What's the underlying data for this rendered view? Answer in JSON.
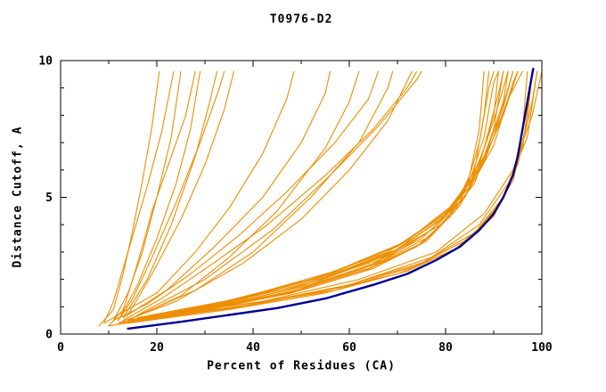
{
  "chart_data": {
    "type": "line",
    "title": "T0976-D2",
    "xlabel": "Percent of Residues (CA)",
    "ylabel": "Distance Cutoff, A",
    "xlim": [
      0,
      100
    ],
    "ylim": [
      0,
      10
    ],
    "xticks": [
      0,
      20,
      40,
      60,
      80,
      100
    ],
    "xminor": [
      10,
      30,
      50,
      70,
      90
    ],
    "yticks": [
      0,
      5,
      10
    ],
    "yminor": [
      1,
      2,
      3,
      4,
      6,
      7,
      8,
      9
    ],
    "grid": false,
    "legend": "none",
    "colors": {
      "model": "#ED8E00",
      "reference": "#000090",
      "axis": "#000000",
      "background": "#ffffff"
    },
    "models": [
      [
        [
          8,
          0.3
        ],
        [
          11,
          0.9
        ],
        [
          13,
          2.2
        ],
        [
          15,
          3.8
        ],
        [
          17,
          5.6
        ],
        [
          19,
          7.6
        ],
        [
          20.5,
          9.6
        ]
      ],
      [
        [
          11,
          0.5
        ],
        [
          14,
          1.5
        ],
        [
          17,
          3
        ],
        [
          20,
          5
        ],
        [
          23,
          7.2
        ],
        [
          25,
          9.6
        ]
      ],
      [
        [
          12,
          0.5
        ],
        [
          16,
          1.8
        ],
        [
          20,
          3.5
        ],
        [
          24,
          5.5
        ],
        [
          27,
          7.5
        ],
        [
          29,
          9.6
        ]
      ],
      [
        [
          13,
          0.6
        ],
        [
          18,
          2
        ],
        [
          23,
          4
        ],
        [
          28,
          6.5
        ],
        [
          31,
          8.5
        ],
        [
          32.5,
          9.6
        ]
      ],
      [
        [
          10,
          0.3
        ],
        [
          13,
          0.9
        ],
        [
          15,
          2
        ],
        [
          17,
          3.2
        ],
        [
          19,
          4.5
        ],
        [
          22,
          6
        ],
        [
          26,
          8
        ],
        [
          28,
          9.6
        ]
      ],
      [
        [
          14,
          0.7
        ],
        [
          19,
          2.2
        ],
        [
          25,
          4.2
        ],
        [
          30,
          6.2
        ],
        [
          34,
          8.2
        ],
        [
          36,
          9.6
        ]
      ],
      [
        [
          9,
          0.4
        ],
        [
          11,
          1.2
        ],
        [
          13,
          2.4
        ],
        [
          15,
          3.6
        ],
        [
          18,
          5.4
        ],
        [
          21,
          7.4
        ],
        [
          23.5,
          9.6
        ]
      ],
      [
        [
          12,
          0.5
        ],
        [
          15,
          1.3
        ],
        [
          19,
          2.8
        ],
        [
          24,
          4.8
        ],
        [
          29,
          7
        ],
        [
          33,
          9
        ],
        [
          34,
          9.6
        ]
      ],
      [
        [
          9,
          0.4
        ],
        [
          20,
          1.5
        ],
        [
          28,
          3
        ],
        [
          35,
          4.6
        ],
        [
          42,
          6.6
        ],
        [
          47,
          8.6
        ],
        [
          48.5,
          9.6
        ]
      ],
      [
        [
          13,
          0.6
        ],
        [
          22,
          1.6
        ],
        [
          32,
          3.2
        ],
        [
          42,
          5
        ],
        [
          50,
          7
        ],
        [
          55,
          8.8
        ],
        [
          56,
          9.6
        ]
      ],
      [
        [
          14,
          0.5
        ],
        [
          25,
          1.4
        ],
        [
          35,
          2.8
        ],
        [
          45,
          4.5
        ],
        [
          55,
          6.8
        ],
        [
          60,
          8.5
        ],
        [
          62,
          9.6
        ]
      ],
      [
        [
          15,
          0.6
        ],
        [
          28,
          1.6
        ],
        [
          40,
          3
        ],
        [
          52,
          5
        ],
        [
          62,
          7
        ],
        [
          68,
          9
        ],
        [
          69,
          9.6
        ]
      ],
      [
        [
          12,
          0.4
        ],
        [
          24,
          1.2
        ],
        [
          38,
          2.6
        ],
        [
          50,
          4.2
        ],
        [
          60,
          6
        ],
        [
          68,
          7.8
        ],
        [
          73,
          9.6
        ]
      ],
      [
        [
          16,
          0.7
        ],
        [
          30,
          2
        ],
        [
          44,
          3.8
        ],
        [
          56,
          5.8
        ],
        [
          66,
          7.6
        ],
        [
          74,
          9.3
        ],
        [
          75,
          9.6
        ]
      ],
      [
        [
          11,
          0.5
        ],
        [
          18,
          1.1
        ],
        [
          27,
          2.2
        ],
        [
          37,
          3.6
        ],
        [
          47,
          5.2
        ],
        [
          57,
          7
        ],
        [
          64,
          8.6
        ],
        [
          66,
          9.6
        ]
      ],
      [
        [
          13,
          0.5
        ],
        [
          21,
          1.3
        ],
        [
          31,
          2.5
        ],
        [
          43,
          4
        ],
        [
          55,
          5.8
        ],
        [
          65,
          7.5
        ],
        [
          72,
          9
        ],
        [
          74,
          9.6
        ]
      ],
      [
        [
          13,
          0.4
        ],
        [
          30,
          0.9
        ],
        [
          50,
          1.6
        ],
        [
          65,
          2.4
        ],
        [
          75,
          3.3
        ],
        [
          82,
          4.5
        ],
        [
          86,
          6
        ],
        [
          88,
          8
        ],
        [
          89,
          9.6
        ]
      ],
      [
        [
          14,
          0.5
        ],
        [
          32,
          1
        ],
        [
          52,
          1.8
        ],
        [
          67,
          2.7
        ],
        [
          77,
          3.8
        ],
        [
          84,
          5.2
        ],
        [
          87,
          7
        ],
        [
          89,
          9
        ],
        [
          90,
          9.6
        ]
      ],
      [
        [
          10,
          0.3
        ],
        [
          28,
          0.8
        ],
        [
          48,
          1.5
        ],
        [
          63,
          2.3
        ],
        [
          74,
          3.2
        ],
        [
          81,
          4.3
        ],
        [
          85,
          5.8
        ],
        [
          87,
          7.5
        ],
        [
          88,
          9.6
        ]
      ],
      [
        [
          15,
          0.5
        ],
        [
          34,
          1.1
        ],
        [
          54,
          2
        ],
        [
          69,
          3
        ],
        [
          79,
          4.2
        ],
        [
          85,
          5.6
        ],
        [
          88,
          7.2
        ],
        [
          90,
          9.2
        ],
        [
          91,
          9.6
        ]
      ],
      [
        [
          16,
          0.5
        ],
        [
          36,
          1.2
        ],
        [
          56,
          2.2
        ],
        [
          71,
          3.3
        ],
        [
          81,
          4.6
        ],
        [
          87,
          6.2
        ],
        [
          90,
          8
        ],
        [
          91,
          9.6
        ]
      ],
      [
        [
          13,
          0.4
        ],
        [
          31,
          0.9
        ],
        [
          51,
          1.7
        ],
        [
          66,
          2.6
        ],
        [
          77,
          3.6
        ],
        [
          84,
          5
        ],
        [
          88,
          6.8
        ],
        [
          91,
          8.8
        ],
        [
          92,
          9.6
        ]
      ],
      [
        [
          14,
          0.5
        ],
        [
          33,
          1
        ],
        [
          53,
          1.9
        ],
        [
          68,
          2.9
        ],
        [
          79,
          4
        ],
        [
          86,
          5.5
        ],
        [
          90,
          7.5
        ],
        [
          92,
          9.6
        ]
      ],
      [
        [
          12,
          0.4
        ],
        [
          29,
          0.9
        ],
        [
          49,
          1.6
        ],
        [
          64,
          2.4
        ],
        [
          76,
          3.4
        ],
        [
          83,
          4.7
        ],
        [
          88,
          6.4
        ],
        [
          92,
          8.5
        ],
        [
          93,
          9.6
        ]
      ],
      [
        [
          15,
          0.5
        ],
        [
          35,
          1.2
        ],
        [
          55,
          2.1
        ],
        [
          70,
          3.1
        ],
        [
          80,
          4.3
        ],
        [
          86,
          5.8
        ],
        [
          90,
          7.8
        ],
        [
          93,
          9.6
        ]
      ],
      [
        [
          16,
          0.6
        ],
        [
          37,
          1.3
        ],
        [
          57,
          2.3
        ],
        [
          72,
          3.4
        ],
        [
          82,
          4.8
        ],
        [
          88,
          6.5
        ],
        [
          92,
          8.3
        ],
        [
          94,
          9.6
        ]
      ],
      [
        [
          13,
          0.4
        ],
        [
          30,
          1
        ],
        [
          50,
          1.8
        ],
        [
          66,
          2.7
        ],
        [
          78,
          3.9
        ],
        [
          85,
          5.4
        ],
        [
          90,
          7.2
        ],
        [
          93,
          9
        ],
        [
          94,
          9.6
        ]
      ],
      [
        [
          14,
          0.5
        ],
        [
          32,
          1.1
        ],
        [
          52,
          2
        ],
        [
          68,
          3
        ],
        [
          80,
          4.4
        ],
        [
          87,
          6
        ],
        [
          92,
          8
        ],
        [
          95,
          9.6
        ]
      ],
      [
        [
          12,
          0.4
        ],
        [
          27,
          0.8
        ],
        [
          47,
          1.5
        ],
        [
          63,
          2.4
        ],
        [
          75,
          3.5
        ],
        [
          84,
          5
        ],
        [
          90,
          6.9
        ],
        [
          94,
          9.2
        ],
        [
          95,
          9.6
        ]
      ],
      [
        [
          15,
          0.5
        ],
        [
          34,
          1.1
        ],
        [
          54,
          2.1
        ],
        [
          70,
          3.2
        ],
        [
          81,
          4.5
        ],
        [
          88,
          6.3
        ],
        [
          93,
          8.6
        ],
        [
          96,
          9.6
        ]
      ],
      [
        [
          14,
          0.4
        ],
        [
          35,
          0.9
        ],
        [
          55,
          1.5
        ],
        [
          72,
          2.3
        ],
        [
          83,
          3.2
        ],
        [
          90,
          4.3
        ],
        [
          94,
          5.8
        ],
        [
          96,
          7.5
        ],
        [
          97,
          9.6
        ]
      ],
      [
        [
          15,
          0.5
        ],
        [
          38,
          1
        ],
        [
          58,
          1.7
        ],
        [
          75,
          2.6
        ],
        [
          86,
          3.7
        ],
        [
          92,
          5
        ],
        [
          96,
          6.8
        ],
        [
          98,
          9.6
        ]
      ],
      [
        [
          13,
          0.4
        ],
        [
          33,
          0.9
        ],
        [
          53,
          1.5
        ],
        [
          70,
          2.2
        ],
        [
          82,
          3.1
        ],
        [
          89,
          4.2
        ],
        [
          94,
          5.6
        ],
        [
          97,
          7.8
        ],
        [
          98,
          9.6
        ]
      ],
      [
        [
          16,
          0.5
        ],
        [
          40,
          1.1
        ],
        [
          60,
          1.8
        ],
        [
          77,
          2.8
        ],
        [
          87,
          4
        ],
        [
          93,
          5.5
        ],
        [
          97,
          7.2
        ],
        [
          99,
          9.6
        ]
      ],
      [
        [
          14,
          0.4
        ],
        [
          36,
          1
        ],
        [
          57,
          1.6
        ],
        [
          74,
          2.5
        ],
        [
          85,
          3.5
        ],
        [
          91,
          4.7
        ],
        [
          95,
          6.2
        ],
        [
          98,
          8.5
        ],
        [
          99,
          9.6
        ]
      ],
      [
        [
          17,
          0.6
        ],
        [
          42,
          1.2
        ],
        [
          62,
          2
        ],
        [
          78,
          3
        ],
        [
          88,
          4.4
        ],
        [
          94,
          6
        ],
        [
          98,
          8
        ],
        [
          100,
          9.6
        ]
      ]
    ],
    "reference": [
      [
        14,
        0.2
      ],
      [
        25,
        0.45
      ],
      [
        35,
        0.7
      ],
      [
        45,
        0.95
      ],
      [
        55,
        1.3
      ],
      [
        65,
        1.8
      ],
      [
        72,
        2.2
      ],
      [
        78,
        2.7
      ],
      [
        83,
        3.2
      ],
      [
        87,
        3.8
      ],
      [
        90,
        4.4
      ],
      [
        92,
        5
      ],
      [
        94,
        5.8
      ],
      [
        95,
        6.5
      ],
      [
        96,
        7.5
      ],
      [
        97,
        8.5
      ],
      [
        97.8,
        9.3
      ],
      [
        98.2,
        9.7
      ]
    ]
  }
}
